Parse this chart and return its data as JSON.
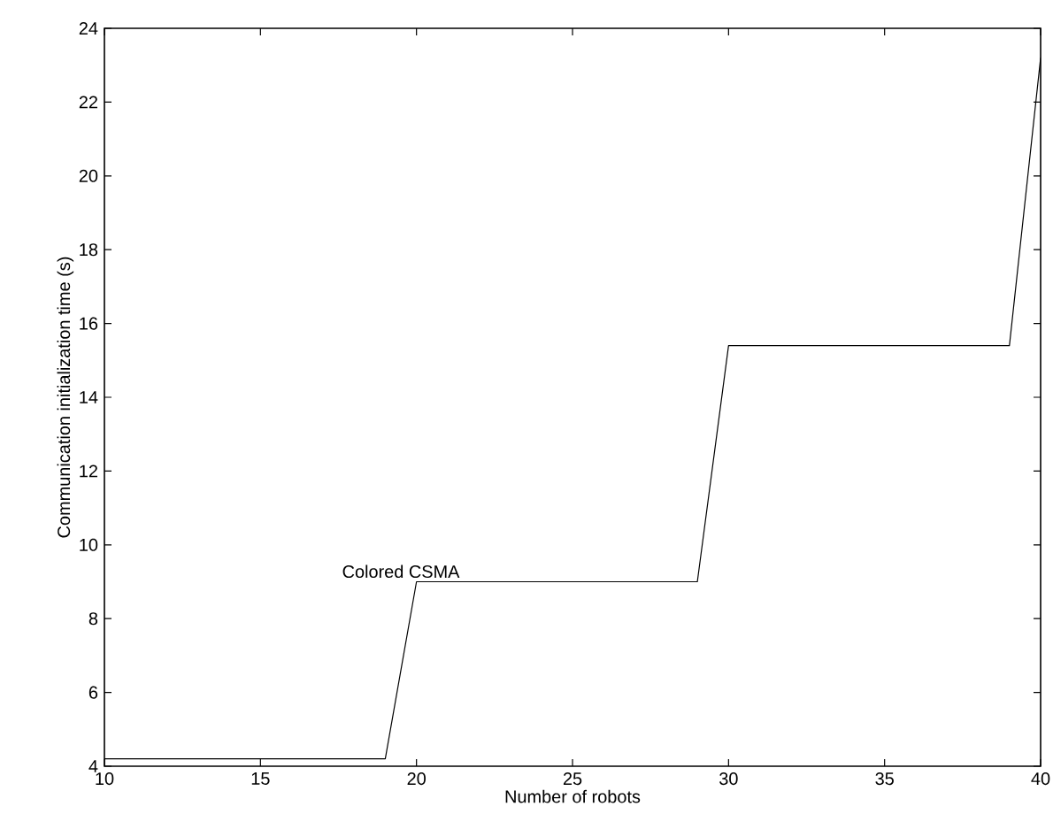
{
  "chart_data": {
    "type": "line",
    "xlabel": "Number of robots",
    "ylabel": "Communication initialization time (s)",
    "x": [
      10,
      19,
      20,
      29,
      30,
      39,
      40
    ],
    "series": [
      {
        "name": "Colored CSMA",
        "color": "#000000",
        "values": [
          4.2,
          4.2,
          9.0,
          9.0,
          15.4,
          15.4,
          23.2
        ]
      }
    ],
    "xlim": [
      10,
      40
    ],
    "ylim": [
      4,
      24
    ],
    "xticks": [
      10,
      15,
      20,
      25,
      30,
      35,
      40
    ],
    "yticks": [
      4,
      6,
      8,
      10,
      12,
      14,
      16,
      18,
      20,
      22,
      24
    ],
    "grid": false,
    "legend": false,
    "marker": "none",
    "line_style": "solid"
  }
}
